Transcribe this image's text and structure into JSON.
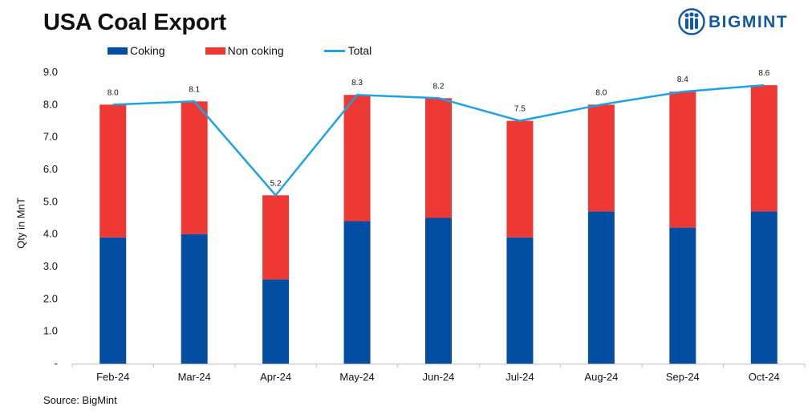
{
  "title": "USA Coal Export",
  "logo": {
    "text": "BIGMINT",
    "icon": "bigmint-people-icon"
  },
  "source": "Source: BigMint",
  "colors": {
    "coking": "#034ea2",
    "non_coking": "#ee3833",
    "total": "#1ea3e0",
    "brand": "#1459a6"
  },
  "chart_data": {
    "type": "bar",
    "stacked": true,
    "title": "USA Coal Export",
    "xlabel": "",
    "ylabel": "Qty in MnT",
    "ylim": [
      0,
      9
    ],
    "yticks": [
      "-",
      "1.0",
      "2.0",
      "3.0",
      "4.0",
      "5.0",
      "6.0",
      "7.0",
      "8.0",
      "9.0"
    ],
    "categories": [
      "Feb-24",
      "Mar-24",
      "Apr-24",
      "May-24",
      "Jun-24",
      "Jul-24",
      "Aug-24",
      "Sep-24",
      "Oct-24"
    ],
    "series": [
      {
        "name": "Coking",
        "kind": "bar",
        "values": [
          3.9,
          4.0,
          2.6,
          4.4,
          4.5,
          3.9,
          4.7,
          4.2,
          4.7
        ]
      },
      {
        "name": "Non coking",
        "kind": "bar",
        "values": [
          4.1,
          4.1,
          2.6,
          3.9,
          3.7,
          3.6,
          3.3,
          4.2,
          3.9
        ]
      },
      {
        "name": "Total",
        "kind": "line",
        "values": [
          8.0,
          8.1,
          5.2,
          8.3,
          8.2,
          7.5,
          8.0,
          8.4,
          8.6
        ]
      }
    ],
    "data_labels": [
      "8.0",
      "8.1",
      "5.2",
      "8.3",
      "8.2",
      "7.5",
      "8.0",
      "8.4",
      "8.6"
    ],
    "legend_position": "top",
    "grid": false
  }
}
